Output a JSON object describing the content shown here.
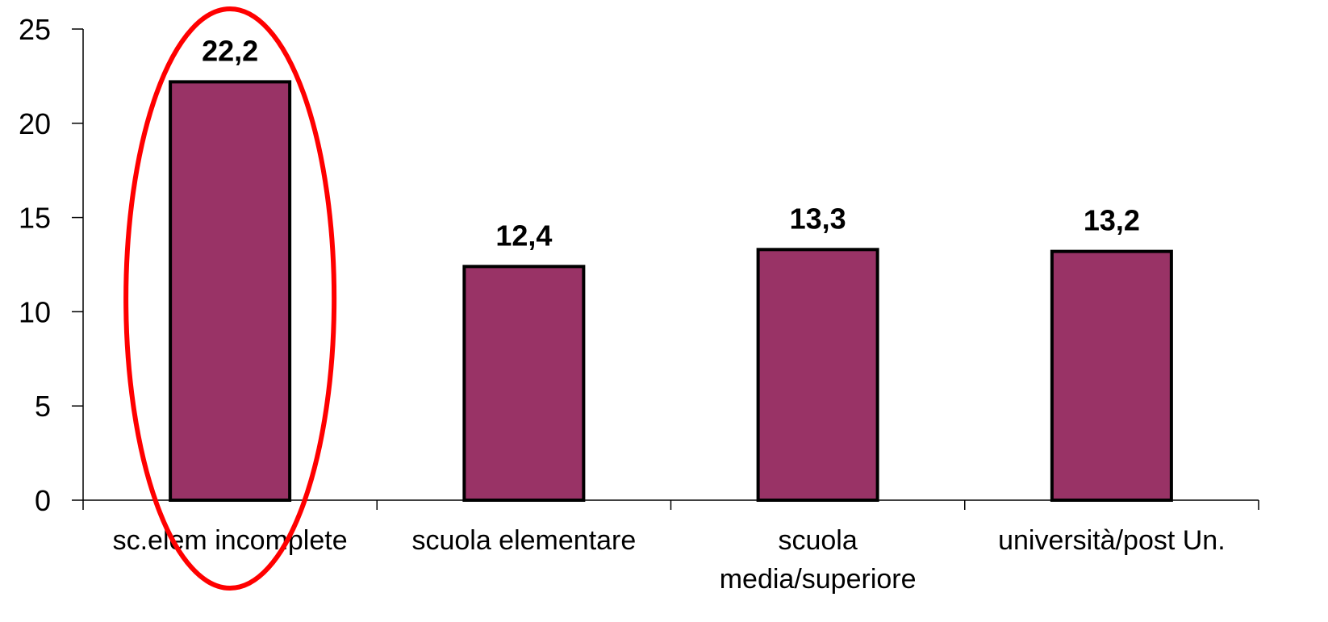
{
  "chart_data": {
    "type": "bar",
    "categories": [
      "sc.elem incomplete",
      "scuola elementare",
      "scuola media/superiore",
      "università/post Un."
    ],
    "category_lines": [
      [
        "sc.elem incomplete"
      ],
      [
        "scuola elementare"
      ],
      [
        "scuola",
        "media/superiore"
      ],
      [
        "università/post Un."
      ]
    ],
    "values": [
      22.2,
      12.4,
      13.3,
      13.2
    ],
    "data_labels": [
      "22,2",
      "12,4",
      "13,3",
      "13,2"
    ],
    "ylim": [
      0,
      25
    ],
    "yticks": [
      0,
      5,
      10,
      15,
      20,
      25
    ],
    "ytick_labels": [
      "0",
      "5",
      "10",
      "15",
      "20",
      "25"
    ],
    "title": "",
    "xlabel": "",
    "ylabel": "",
    "grid": false,
    "legend": "none",
    "bar_color": "#993366",
    "bar_edge_color": "#000000",
    "highlight": {
      "category_index": 0,
      "shape": "ellipse",
      "color": "#ff0000"
    }
  }
}
